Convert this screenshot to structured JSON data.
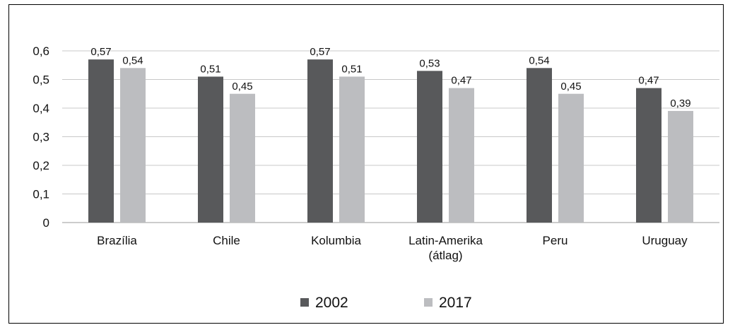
{
  "chart_data": {
    "type": "bar",
    "title": "",
    "xlabel": "",
    "ylabel": "",
    "categories": [
      "Brazília",
      "Chile",
      "Kolumbia",
      "Latin-Amerika\n(átlag)",
      "Peru",
      "Uruguay"
    ],
    "series": [
      {
        "name": "2002",
        "values": [
          0.57,
          0.51,
          0.57,
          0.53,
          0.54,
          0.47
        ],
        "labels": [
          "0,57",
          "0,51",
          "0,57",
          "0,53",
          "0,54",
          "0,47"
        ],
        "color": "#58595b"
      },
      {
        "name": "2017",
        "values": [
          0.54,
          0.45,
          0.51,
          0.47,
          0.45,
          0.39
        ],
        "labels": [
          "0,54",
          "0,45",
          "0,51",
          "0,47",
          "0,45",
          "0,39"
        ],
        "color": "#bcbdc0"
      }
    ],
    "ylim": [
      0,
      0.6
    ],
    "yticks": [
      0,
      0.1,
      0.2,
      0.3,
      0.4,
      0.5,
      0.6
    ],
    "ytick_labels": [
      "0",
      "0,1",
      "0,2",
      "0,3",
      "0,4",
      "0,5",
      "0,6"
    ],
    "grid": true,
    "legend_position": "bottom",
    "data_labels": [
      [
        "0,57",
        "0,51",
        "0,57",
        "0,53",
        "0,54",
        "0,47"
      ],
      [
        "0,54",
        "0,45",
        "0,51",
        "0,47",
        "0,45",
        "0,39"
      ]
    ]
  },
  "colors": {
    "gridline": "#c8c8c8",
    "axis": "#9a9a9a",
    "frame": "#000000"
  }
}
